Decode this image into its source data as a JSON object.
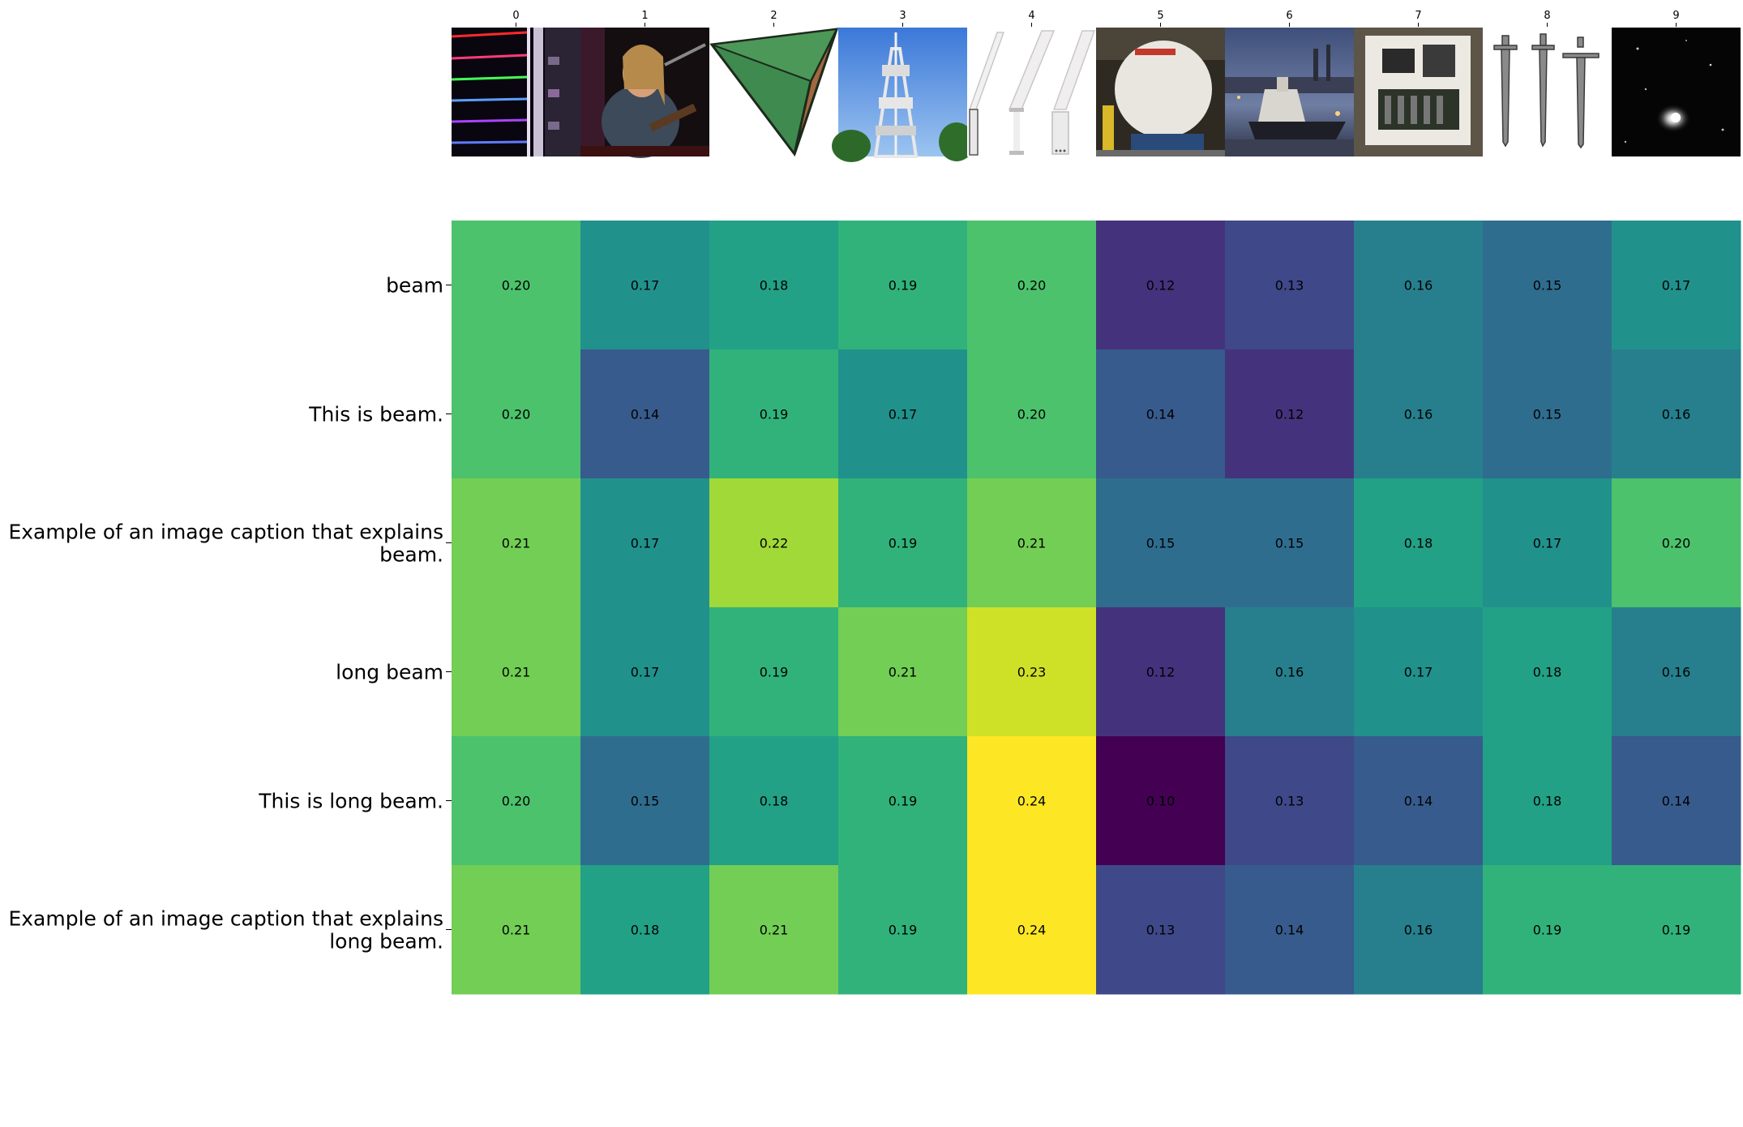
{
  "chart_data": {
    "type": "heatmap",
    "x": [
      "0",
      "1",
      "2",
      "3",
      "4",
      "5",
      "6",
      "7",
      "8",
      "9"
    ],
    "y": [
      "beam",
      "This is beam.",
      "Example of an image caption that explains beam.",
      "long beam",
      "This is long beam.",
      "Example of an image caption that explains long beam."
    ],
    "values": [
      [
        0.2,
        0.17,
        0.18,
        0.19,
        0.2,
        0.12,
        0.13,
        0.16,
        0.15,
        0.17
      ],
      [
        0.2,
        0.14,
        0.19,
        0.17,
        0.2,
        0.14,
        0.12,
        0.16,
        0.15,
        0.16
      ],
      [
        0.21,
        0.17,
        0.22,
        0.19,
        0.21,
        0.15,
        0.15,
        0.18,
        0.17,
        0.2
      ],
      [
        0.21,
        0.17,
        0.19,
        0.21,
        0.23,
        0.12,
        0.16,
        0.17,
        0.18,
        0.16
      ],
      [
        0.2,
        0.15,
        0.18,
        0.19,
        0.24,
        0.1,
        0.13,
        0.14,
        0.18,
        0.14
      ],
      [
        0.21,
        0.18,
        0.21,
        0.19,
        0.24,
        0.13,
        0.14,
        0.16,
        0.19,
        0.19
      ]
    ],
    "value_format": "2 decimals",
    "colormap": "viridis",
    "colorscale_range": [
      0.1,
      0.24
    ],
    "thumbnail_images": [
      {
        "index": "0",
        "icon": "laser-light-strip-photo"
      },
      {
        "index": "1",
        "icon": "guitarist-on-stage-photo"
      },
      {
        "index": "2",
        "icon": "green-brown-pyramid-image"
      },
      {
        "index": "3",
        "icon": "telecom-tower-photo"
      },
      {
        "index": "4",
        "icon": "metal-beam-profiles-drawing"
      },
      {
        "index": "5",
        "icon": "space-module-in-hangar-photo"
      },
      {
        "index": "6",
        "icon": "harbor-boat-at-dusk-photo"
      },
      {
        "index": "7",
        "icon": "machine-assembly-photo"
      },
      {
        "index": "8",
        "icon": "three-swords-photo"
      },
      {
        "index": "9",
        "icon": "elliptical-galaxy-photo"
      }
    ]
  }
}
